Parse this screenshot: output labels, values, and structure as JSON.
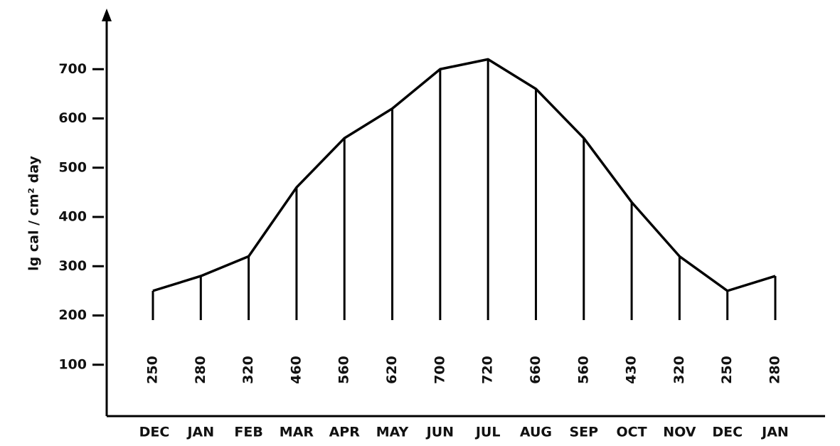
{
  "chart_data": {
    "type": "line",
    "y_label": "lg cal / cm² day",
    "categories": [
      "DEC",
      "JAN",
      "FEB",
      "MAR",
      "APR",
      "MAY",
      "JUN",
      "JUL",
      "AUG",
      "SEP",
      "OCT",
      "NOV",
      "DEC",
      "JAN"
    ],
    "values": [
      250,
      280,
      320,
      460,
      560,
      620,
      700,
      720,
      660,
      560,
      430,
      320,
      250,
      280
    ],
    "color": "#000000",
    "ylim": [
      0,
      800
    ],
    "yticks": [
      100,
      200,
      300,
      400,
      500,
      600,
      700
    ]
  }
}
